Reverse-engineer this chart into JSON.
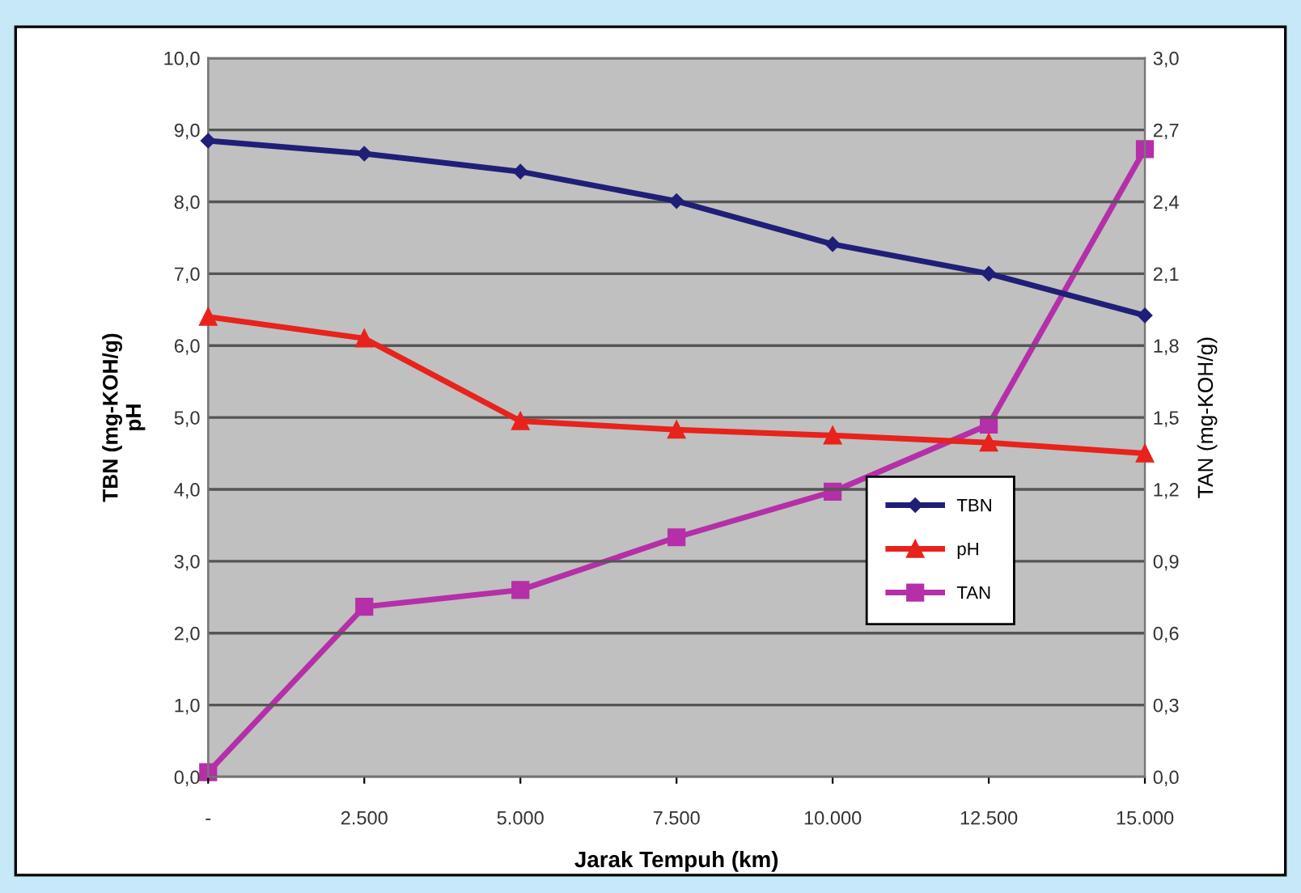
{
  "chart_data": {
    "type": "line",
    "xlabel": "Jarak Tempuh (km)",
    "ylabel": "TBN (mg-KOH/g)\npH",
    "y2label": "TAN (mg-KOH/g)",
    "categories": [
      "-",
      "2.500",
      "5.000",
      "7.500",
      "10.000",
      "12.500",
      "15.000"
    ],
    "series": [
      {
        "name": "TBN",
        "color": "#1f1f78",
        "marker": "diamond",
        "values": [
          8.85,
          8.67,
          8.42,
          8.01,
          7.41,
          7.0,
          6.42
        ]
      },
      {
        "name": "pH",
        "color": "#e8221c",
        "marker": "triangle",
        "values": [
          6.4,
          6.1,
          4.95,
          4.83,
          4.75,
          4.65,
          4.5
        ]
      },
      {
        "name": "TAN",
        "color": "#b52fa8",
        "marker": "square",
        "axis": "y2",
        "values": [
          0.02,
          0.71,
          0.78,
          1.0,
          1.19,
          1.47,
          2.62
        ]
      }
    ],
    "ylim": [
      0,
      10
    ],
    "yticks": [
      {
        "value": 0,
        "label": "0,0"
      },
      {
        "value": 1,
        "label": "1,0"
      },
      {
        "value": 2,
        "label": "2,0"
      },
      {
        "value": 3,
        "label": "3,0"
      },
      {
        "value": 4,
        "label": "4,0"
      },
      {
        "value": 5,
        "label": "5,0"
      },
      {
        "value": 6,
        "label": "6,0"
      },
      {
        "value": 7,
        "label": "7,0"
      },
      {
        "value": 8,
        "label": "8,0"
      },
      {
        "value": 9,
        "label": "9,0"
      },
      {
        "value": 10,
        "label": "10,0"
      }
    ],
    "y2lim": [
      0,
      3
    ],
    "y2ticks": [
      {
        "value": 0,
        "label": "0,0"
      },
      {
        "value": 0.3,
        "label": "0,3"
      },
      {
        "value": 0.6,
        "label": "0,6"
      },
      {
        "value": 0.9,
        "label": "0,9"
      },
      {
        "value": 1.2,
        "label": "1,2"
      },
      {
        "value": 1.5,
        "label": "1,5"
      },
      {
        "value": 1.8,
        "label": "1,8"
      },
      {
        "value": 2.1,
        "label": "2,1"
      },
      {
        "value": 2.4,
        "label": "2,4"
      },
      {
        "value": 2.7,
        "label": "2,7"
      },
      {
        "value": 3.0,
        "label": "3,0"
      }
    ],
    "grid": "y",
    "legend": "bottom right"
  }
}
